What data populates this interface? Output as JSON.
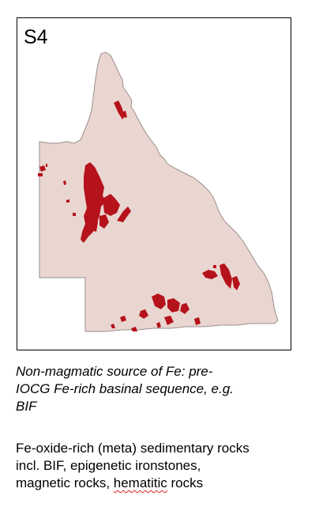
{
  "panel": {
    "label": "S4"
  },
  "map": {
    "land_fill": "#e9d6d0",
    "land_stroke": "#9a8f8c",
    "unit_fill": "#b5121b"
  },
  "caption_italic": {
    "line1": "Non-magmatic source of Fe: pre-",
    "line2": "IOCG Fe-rich basinal sequence, e.g.",
    "line3": "BIF"
  },
  "description": {
    "line1": "Fe-oxide-rich (meta) sedimentary rocks",
    "line2": "incl. BIF, epigenetic ironstones,",
    "line3_pre": "magnetic rocks, ",
    "line3_flag": "hematitic",
    "line3_post": " rocks"
  }
}
